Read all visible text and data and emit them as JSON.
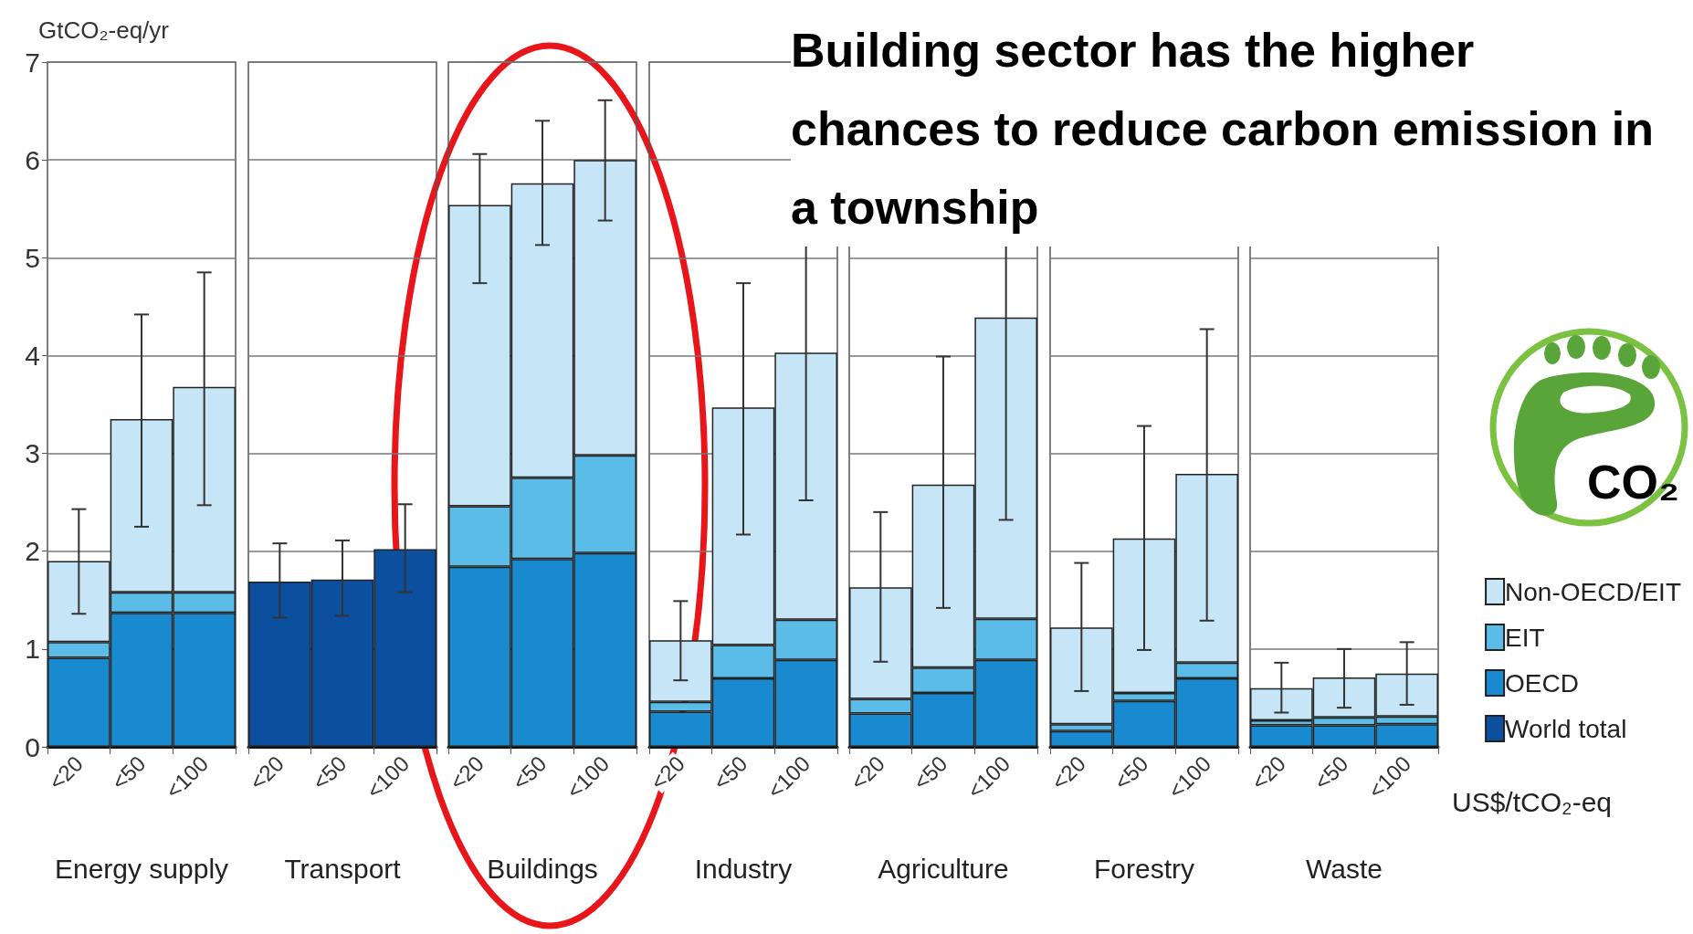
{
  "chart_data": [
    {
      "type": "bar",
      "stacked": true,
      "ylabel": "GtCO₂-eq/yr",
      "xlabel": "Energy supply",
      "categories": [
        "<20",
        "<50",
        "<100"
      ],
      "ylim": [
        0,
        7
      ],
      "yticks": [
        0,
        1,
        2,
        3,
        4,
        5,
        6,
        7
      ],
      "grid": "y",
      "legend": false,
      "series": [
        {
          "color": "#0b4f9e",
          "values": [
            null,
            null,
            null
          ]
        },
        {
          "color": "#1a8ad0",
          "values": [
            0.91,
            1.37,
            1.37
          ]
        },
        {
          "color": "#5bbce8",
          "values": [
            0.16,
            0.21,
            0.21
          ]
        },
        {
          "color": "#c6e6f7",
          "values": [
            0.83,
            1.77,
            2.1
          ],
          "errors": [
            [
              1.36,
              2.43
            ],
            [
              2.25,
              4.42
            ],
            [
              2.47,
              4.85
            ]
          ]
        }
      ]
    },
    {
      "type": "bar",
      "stacked": true,
      "xlabel": "Transport",
      "categories": [
        "<20",
        "<50",
        "<100"
      ],
      "ylim": [
        0,
        7
      ],
      "yticks": [
        0,
        1,
        2,
        3,
        4,
        5,
        6,
        7
      ],
      "grid": "y",
      "legend": false,
      "tick_labels": "x",
      "series": [
        {
          "color": "#0b4f9e",
          "values": [
            1.69,
            1.71,
            2.02
          ],
          "errors": [
            [
              1.32,
              2.08
            ],
            [
              1.34,
              2.11
            ],
            [
              1.58,
              2.48
            ]
          ]
        },
        {
          "color": "#1a8ad0",
          "values": [
            null,
            null,
            null
          ]
        },
        {
          "color": "#5bbce8",
          "values": [
            null,
            null,
            null
          ]
        },
        {
          "color": "#c6e6f7",
          "values": [
            null,
            null,
            null
          ]
        }
      ]
    },
    {
      "type": "bar",
      "stacked": true,
      "xlabel": "Buildings",
      "categories": [
        "<20",
        "<50",
        "<100"
      ],
      "ylim": [
        0,
        7
      ],
      "yticks": [
        0,
        1,
        2,
        3,
        4,
        5,
        6,
        7
      ],
      "grid": "y",
      "legend": false,
      "tick_labels": "x",
      "series": [
        {
          "color": "#0b4f9e",
          "values": [
            null,
            null,
            null
          ]
        },
        {
          "color": "#1a8ad0",
          "values": [
            1.84,
            1.92,
            1.98
          ]
        },
        {
          "color": "#5bbce8",
          "values": [
            0.62,
            0.83,
            1.0
          ]
        },
        {
          "color": "#c6e6f7",
          "values": [
            3.08,
            3.01,
            3.02
          ],
          "errors": [
            [
              4.74,
              6.06
            ],
            [
              5.13,
              6.4
            ],
            [
              5.38,
              6.61
            ]
          ]
        }
      ]
    },
    {
      "type": "bar",
      "stacked": true,
      "xlabel": "Industry",
      "categories": [
        "<20",
        "<50",
        "<100"
      ],
      "ylim": [
        0,
        7
      ],
      "yticks": [
        0,
        1,
        2,
        3,
        4,
        5,
        6,
        7
      ],
      "grid": "y",
      "legend": false,
      "tick_labels": "x",
      "series": [
        {
          "color": "#0b4f9e",
          "values": [
            null,
            null,
            null
          ]
        },
        {
          "color": "#1a8ad0",
          "values": [
            0.36,
            0.7,
            0.89
          ]
        },
        {
          "color": "#5bbce8",
          "values": [
            0.1,
            0.34,
            0.41
          ]
        },
        {
          "color": "#c6e6f7",
          "values": [
            0.63,
            2.43,
            2.73
          ],
          "errors": [
            [
              0.68,
              1.49
            ],
            [
              2.17,
              4.74
            ],
            [
              2.52,
              5.51
            ]
          ]
        }
      ]
    },
    {
      "type": "bar",
      "stacked": true,
      "xlabel": "Agriculture",
      "categories": [
        "<20",
        "<50",
        "<100"
      ],
      "ylim": [
        0,
        7
      ],
      "yticks": [
        0,
        1,
        2,
        3,
        4,
        5,
        6,
        7
      ],
      "grid": "y",
      "legend": false,
      "tick_labels": "x",
      "series": [
        {
          "color": "#0b4f9e",
          "values": [
            null,
            null,
            null
          ]
        },
        {
          "color": "#1a8ad0",
          "values": [
            0.34,
            0.55,
            0.89
          ]
        },
        {
          "color": "#5bbce8",
          "values": [
            0.15,
            0.26,
            0.42
          ]
        },
        {
          "color": "#c6e6f7",
          "values": [
            1.14,
            1.87,
            3.08
          ],
          "errors": [
            [
              0.87,
              2.4
            ],
            [
              1.42,
              3.99
            ],
            [
              2.32,
              6.4
            ]
          ]
        }
      ]
    },
    {
      "type": "bar",
      "stacked": true,
      "title": "Building sector has the higher chances to reduce carbon emission in a township",
      "xlabel": "Forestry",
      "categories": [
        "<20",
        "<50",
        "<100"
      ],
      "ylim": [
        0,
        7
      ],
      "yticks": [
        0,
        1,
        2,
        3,
        4,
        5,
        6,
        7
      ],
      "grid": "y",
      "legend": false,
      "tick_labels": "x",
      "series": [
        {
          "color": "#0b4f9e",
          "values": [
            null,
            null,
            null
          ]
        },
        {
          "color": "#1a8ad0",
          "values": [
            0.16,
            0.47,
            0.7
          ]
        },
        {
          "color": "#5bbce8",
          "values": [
            0.07,
            0.08,
            0.16
          ]
        },
        {
          "color": "#c6e6f7",
          "values": [
            0.99,
            1.58,
            1.93
          ],
          "errors": [
            [
              0.57,
              1.88
            ],
            [
              0.99,
              3.28
            ],
            [
              1.29,
              4.27
            ]
          ]
        }
      ]
    },
    {
      "type": "bar",
      "stacked": true,
      "xlabel": "Waste",
      "categories": [
        "<20",
        "<50",
        "<100"
      ],
      "ylim": [
        0,
        7
      ],
      "yticks": [
        0,
        1,
        2,
        3,
        4,
        5,
        6,
        7
      ],
      "grid": "y",
      "legend": "right",
      "tick_labels": "x",
      "annotations": [
        "US$/tCO₂-eq",
        "CO₂"
      ],
      "series": [
        {
          "name": "World total",
          "color": "#0b4f9e",
          "values": [
            null,
            null,
            null
          ]
        },
        {
          "name": "OECD",
          "color": "#1a8ad0",
          "values": [
            0.22,
            0.22,
            0.23
          ]
        },
        {
          "name": "EIT",
          "color": "#5bbce8",
          "values": [
            0.05,
            0.08,
            0.08
          ]
        },
        {
          "name": "Non-OECD/EIT",
          "color": "#c6e6f7",
          "values": [
            0.33,
            0.41,
            0.44
          ],
          "errors": [
            [
              0.35,
              0.86
            ],
            [
              0.4,
              1.0
            ],
            [
              0.43,
              1.07
            ]
          ]
        }
      ]
    }
  ]
}
